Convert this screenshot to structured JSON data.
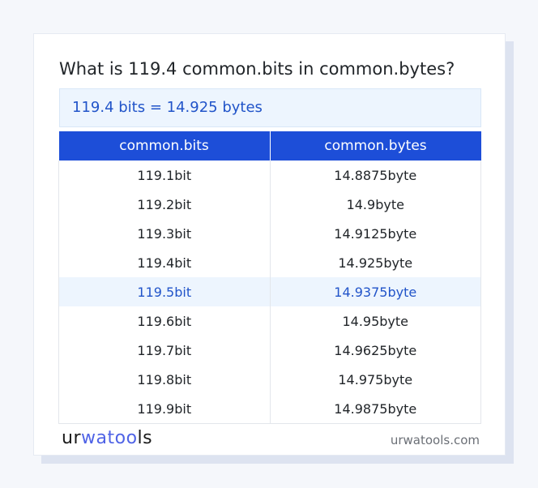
{
  "title": "What is 119.4 common.bits in common.bytes?",
  "result": "119.4 bits = 14.925 bytes",
  "table": {
    "headers": [
      "common.bits",
      "common.bytes"
    ],
    "rows": [
      [
        "119.1bit",
        "14.8875byte"
      ],
      [
        "119.2bit",
        "14.9byte"
      ],
      [
        "119.3bit",
        "14.9125byte"
      ],
      [
        "119.4bit",
        "14.925byte"
      ],
      [
        "119.5bit",
        "14.9375byte"
      ],
      [
        "119.6bit",
        "14.95byte"
      ],
      [
        "119.7bit",
        "14.9625byte"
      ],
      [
        "119.8bit",
        "14.975byte"
      ],
      [
        "119.9bit",
        "14.9875byte"
      ]
    ],
    "highlighted_row": 4
  },
  "footer": {
    "logo": "urwatools",
    "site": "urwatools.com"
  },
  "colors": {
    "accent": "#1d4ed8",
    "highlight_bg": "#edf5fe",
    "highlight_text": "#2154c9"
  }
}
